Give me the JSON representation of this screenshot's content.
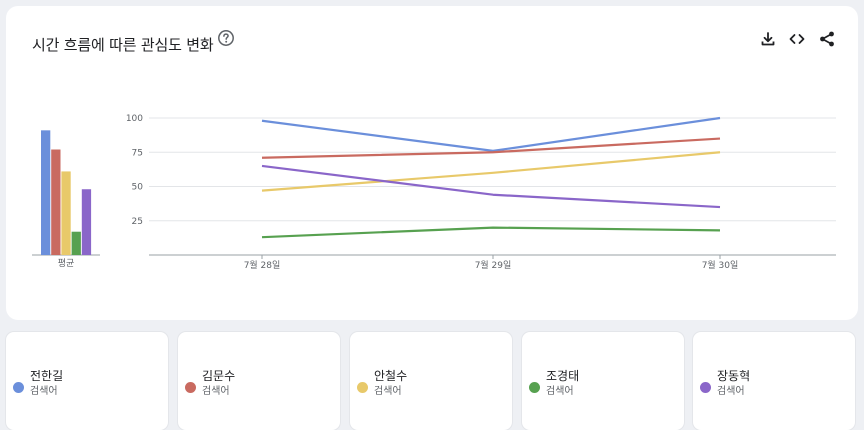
{
  "header": {
    "title": "시간 흐름에 따른 관심도 변화",
    "help_icon": "help-circle-icon",
    "tools": [
      {
        "name": "download",
        "icon": "download-icon"
      },
      {
        "name": "embed",
        "icon": "code-icon"
      },
      {
        "name": "share",
        "icon": "share-icon"
      }
    ]
  },
  "chart_data": {
    "type": "line",
    "x": [
      "7월 28일",
      "7월 29일",
      "7월 30일"
    ],
    "ylim": [
      0,
      100
    ],
    "yticks": [
      25,
      50,
      75,
      100
    ],
    "grid": true,
    "series": [
      {
        "name": "전한길",
        "color": "#6b8fdb",
        "values": [
          98,
          76,
          100
        ],
        "average": 91
      },
      {
        "name": "김문수",
        "color": "#c96a60",
        "values": [
          71,
          75,
          85
        ],
        "average": 77
      },
      {
        "name": "안철수",
        "color": "#e8c96a",
        "values": [
          47,
          60,
          75
        ],
        "average": 61
      },
      {
        "name": "조경태",
        "color": "#57a150",
        "values": [
          13,
          20,
          18
        ],
        "average": 17
      },
      {
        "name": "장동혁",
        "color": "#8a66c9",
        "values": [
          65,
          44,
          35
        ],
        "average": 48
      }
    ],
    "average_label": "평균"
  },
  "legend": {
    "subtitle": "검색어"
  }
}
